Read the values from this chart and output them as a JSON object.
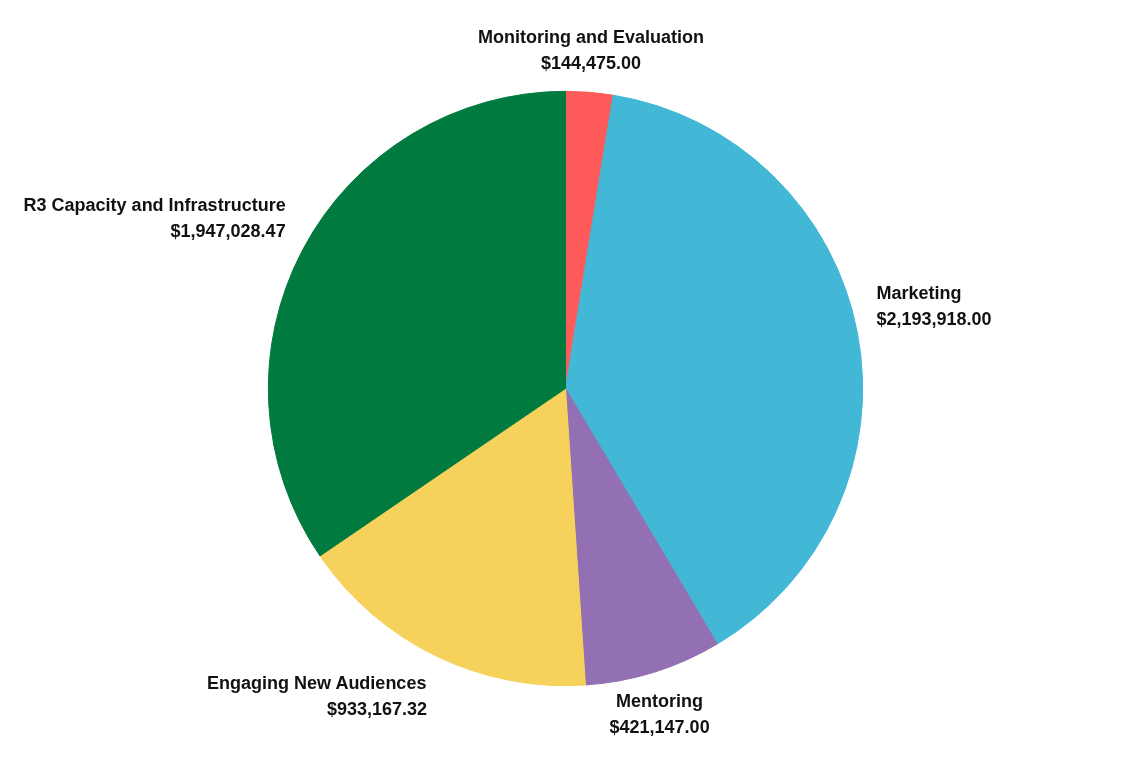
{
  "chart_data": {
    "type": "pie",
    "categories": [
      "Monitoring and Evaluation",
      "Marketing",
      "Mentoring",
      "Engaging New Audiences",
      "R3 Capacity and Infrastructure"
    ],
    "values": [
      144475.0,
      2193918.0,
      421147.0,
      933167.32,
      1947028.47
    ],
    "colors": [
      "#fe5a5a",
      "#42b7d6",
      "#9270b3",
      "#f6d15b",
      "#007a3e"
    ],
    "value_labels": [
      "$144,475.00",
      "$2,193,918.00",
      "$421,147.00",
      "$933,167.32",
      "$1,947,028.47"
    ],
    "legend": false
  }
}
